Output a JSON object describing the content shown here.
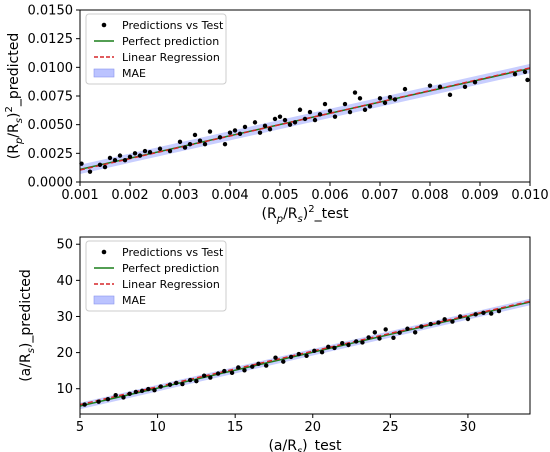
{
  "chart_data": [
    {
      "type": "scatter",
      "xlabel": "(R_p/R_s)^2_test",
      "ylabel": "(R_p/R_s)^2_predicted",
      "xlim": [
        0.001,
        0.01
      ],
      "ylim": [
        0.0,
        0.015
      ],
      "xticks": [
        "0.001",
        "0.002",
        "0.003",
        "0.004",
        "0.005",
        "0.006",
        "0.007",
        "0.008",
        "0.009",
        "0.010"
      ],
      "yticks": [
        "0.0000",
        "0.0025",
        "0.0050",
        "0.0075",
        "0.0100",
        "0.0125",
        "0.0150"
      ],
      "legend": {
        "position": "top-left",
        "entries": [
          "Predictions vs Test",
          "Perfect prediction",
          "Linear Regression",
          "MAE"
        ]
      },
      "perfect_line": {
        "x": [
          0.001,
          0.01
        ],
        "y": [
          0.0011,
          0.0099
        ]
      },
      "regression_line": {
        "x": [
          0.001,
          0.01
        ],
        "y": [
          0.00105,
          0.00995
        ]
      },
      "mae_band": 0.0004,
      "series": [
        {
          "name": "Predictions vs Test",
          "x": [
            0.00103,
            0.0012,
            0.0014,
            0.0015,
            0.0016,
            0.0017,
            0.0018,
            0.0019,
            0.002,
            0.0021,
            0.0022,
            0.0023,
            0.0024,
            0.0026,
            0.0028,
            0.003,
            0.0031,
            0.0032,
            0.0033,
            0.0034,
            0.0035,
            0.0036,
            0.0038,
            0.0039,
            0.004,
            0.0041,
            0.0042,
            0.0043,
            0.0045,
            0.0046,
            0.0047,
            0.0048,
            0.0049,
            0.005,
            0.0051,
            0.0052,
            0.0053,
            0.0054,
            0.0055,
            0.0056,
            0.0057,
            0.0058,
            0.0059,
            0.006,
            0.0061,
            0.0063,
            0.0064,
            0.0065,
            0.0066,
            0.0067,
            0.0068,
            0.007,
            0.0071,
            0.0072,
            0.0073,
            0.0075,
            0.008,
            0.0082,
            0.0084,
            0.0087,
            0.0089,
            0.0097,
            0.0099,
            0.00995
          ],
          "y": [
            0.0016,
            0.0009,
            0.0015,
            0.0013,
            0.0021,
            0.0019,
            0.0023,
            0.0019,
            0.0022,
            0.0025,
            0.0023,
            0.0027,
            0.0026,
            0.0029,
            0.0027,
            0.0035,
            0.003,
            0.0033,
            0.0041,
            0.0036,
            0.0033,
            0.0044,
            0.0039,
            0.0033,
            0.0043,
            0.0045,
            0.0042,
            0.0048,
            0.0052,
            0.0043,
            0.0049,
            0.0046,
            0.0055,
            0.0057,
            0.0054,
            0.005,
            0.0052,
            0.0063,
            0.0055,
            0.0061,
            0.0054,
            0.0059,
            0.0068,
            0.0062,
            0.0057,
            0.0068,
            0.0061,
            0.0078,
            0.0073,
            0.0063,
            0.0066,
            0.0073,
            0.0069,
            0.0074,
            0.0072,
            0.0081,
            0.0084,
            0.0083,
            0.0076,
            0.0083,
            0.0087,
            0.0094,
            0.0096,
            0.0089
          ]
        }
      ]
    },
    {
      "type": "scatter",
      "xlabel": "(a/R_s)_test",
      "ylabel": "(a/R_s)_predicted",
      "xlim": [
        5,
        34
      ],
      "ylim": [
        3,
        52
      ],
      "xticks": [
        "5",
        "10",
        "15",
        "20",
        "25",
        "30"
      ],
      "yticks": [
        "10",
        "20",
        "30",
        "40",
        "50"
      ],
      "legend": {
        "position": "top-left",
        "entries": [
          "Predictions vs Test",
          "Perfect prediction",
          "Linear Regression",
          "MAE"
        ]
      },
      "perfect_line": {
        "x": [
          5,
          34
        ],
        "y": [
          5.2,
          34
        ]
      },
      "regression_line": {
        "x": [
          5,
          34
        ],
        "y": [
          5.6,
          34.2
        ]
      },
      "mae_band": 0.9,
      "series": [
        {
          "name": "Predictions vs Test",
          "x": [
            5.3,
            6.2,
            6.8,
            7.3,
            7.8,
            8.2,
            8.6,
            9.0,
            9.4,
            9.8,
            10.2,
            10.8,
            11.2,
            11.6,
            12.1,
            12.5,
            13.0,
            13.4,
            13.9,
            14.3,
            14.8,
            15.2,
            15.6,
            16.1,
            16.5,
            17.0,
            17.6,
            18.1,
            18.6,
            19.1,
            19.6,
            20.1,
            20.6,
            21.0,
            21.4,
            21.9,
            22.3,
            22.8,
            23.2,
            23.6,
            24.0,
            24.3,
            24.7,
            25.2,
            25.6,
            26.1,
            26.6,
            27.0,
            27.6,
            28.1,
            28.5,
            29.0,
            29.5,
            30.0,
            30.5,
            31.0,
            31.5,
            32.0
          ],
          "y": [
            5.6,
            6.4,
            7.1,
            8.2,
            7.6,
            8.6,
            9.1,
            9.4,
            9.9,
            9.6,
            10.6,
            11.1,
            11.6,
            11.3,
            12.4,
            12.1,
            13.6,
            13.1,
            14.2,
            14.9,
            14.4,
            15.9,
            15.1,
            16.1,
            16.9,
            16.4,
            18.6,
            17.5,
            18.8,
            19.6,
            19.1,
            20.5,
            20.1,
            21.6,
            21.3,
            22.6,
            22.1,
            23.1,
            22.8,
            24.2,
            25.6,
            23.9,
            26.4,
            24.1,
            25.5,
            26.6,
            25.6,
            27.2,
            27.9,
            28.3,
            29.2,
            28.6,
            30.0,
            29.3,
            30.6,
            31.0,
            30.8,
            31.5
          ]
        }
      ]
    }
  ],
  "colors": {
    "point": "#000000",
    "perfect": "#1a7f1a",
    "regression": "#d62728",
    "mae": "#aab4ff"
  }
}
